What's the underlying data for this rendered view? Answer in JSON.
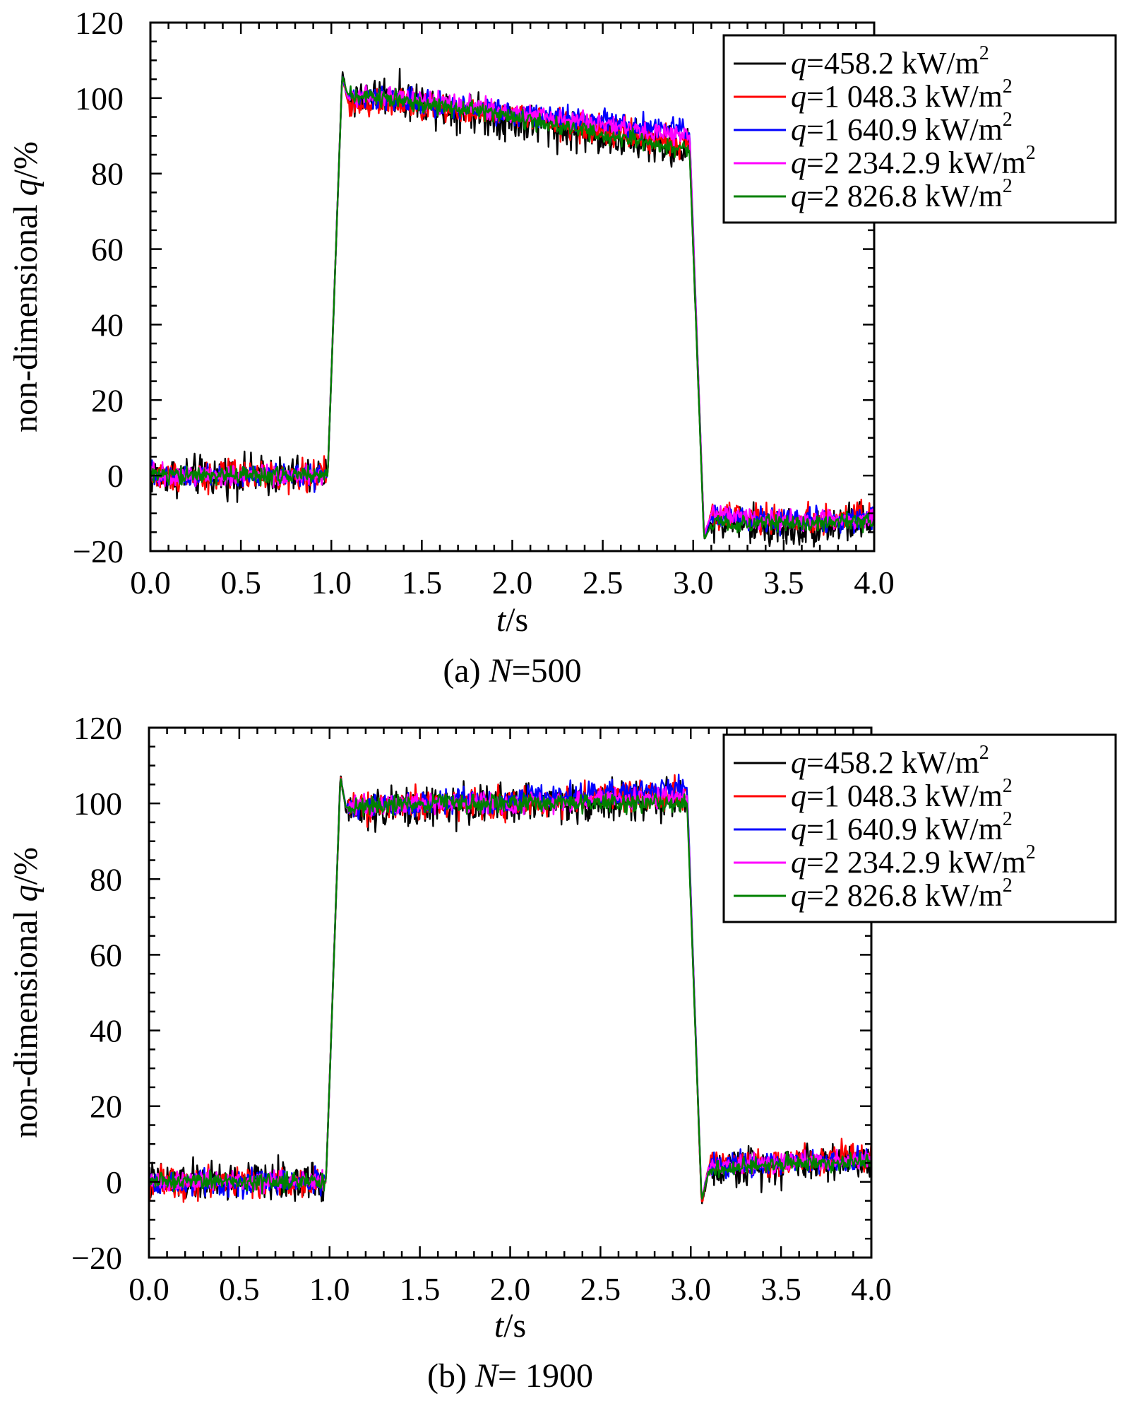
{
  "chart_data": [
    {
      "type": "line",
      "caption": "(a)  N=500",
      "caption_parts": [
        "(a)  ",
        "N",
        "=500"
      ],
      "xlabel": "t/s",
      "xlabel_parts": [
        "t",
        "/s"
      ],
      "ylabel": "non-dimensional q/%",
      "ylabel_parts": [
        "non-dimensional ",
        "q",
        "/%"
      ],
      "xlim": [
        0.0,
        4.0
      ],
      "ylim": [
        -20,
        120
      ],
      "xticks": [
        "0.0",
        "0.5",
        "1.0",
        "1.5",
        "2.0",
        "2.5",
        "3.0",
        "3.5",
        "4.0"
      ],
      "yticks": [
        "120",
        "100",
        "80",
        "60",
        "40",
        "20",
        "0",
        "−20"
      ],
      "legend_position": "top-right",
      "grid": false,
      "series": [
        {
          "name": "q=458.2 kW/m2",
          "parts": [
            "q",
            "=458.2 kW/m",
            "2"
          ],
          "color": "#000000",
          "x": [
            0.0,
            0.98,
            1.06,
            1.09,
            1.3,
            2.0,
            2.98,
            3.06,
            3.1,
            3.5,
            4.0
          ],
          "y": [
            0,
            0,
            107,
            100,
            101,
            94,
            86,
            -17,
            -12,
            -14,
            -12
          ],
          "noise": 4.0
        },
        {
          "name": "q=1 048.3 kW/m2",
          "parts": [
            "q",
            "=1 048.3 kW/m",
            "2"
          ],
          "color": "#ff0000",
          "x": [
            0.0,
            0.98,
            1.06,
            1.09,
            1.3,
            2.0,
            2.98,
            3.06,
            3.1,
            3.5,
            4.0
          ],
          "y": [
            0,
            0,
            106,
            99,
            99,
            95,
            88,
            -16,
            -10,
            -12,
            -11
          ],
          "noise": 3.0
        },
        {
          "name": "q=1 640.9 kW/m2",
          "parts": [
            "q",
            "=1 640.9 kW/m",
            "2"
          ],
          "color": "#0000ff",
          "x": [
            0.0,
            0.98,
            1.06,
            1.09,
            1.3,
            2.0,
            2.98,
            3.06,
            3.1,
            3.5,
            4.0
          ],
          "y": [
            0,
            0,
            106,
            100,
            100,
            96,
            91,
            -16,
            -11,
            -12,
            -11
          ],
          "noise": 2.5
        },
        {
          "name": "q=2 234.2.9 kW/m2",
          "parts": [
            "q",
            "=2 234.2.9 kW/m",
            "2"
          ],
          "color": "#ff00ff",
          "x": [
            0.0,
            0.98,
            1.06,
            1.09,
            1.3,
            2.0,
            2.98,
            3.06,
            3.1,
            3.5,
            4.0
          ],
          "y": [
            0,
            0,
            106,
            100,
            101,
            96,
            90,
            -16,
            -10,
            -12,
            -12
          ],
          "noise": 2.0
        },
        {
          "name": "q=2 826.8 kW/m2",
          "parts": [
            "q",
            "=2 826.8 kW/m",
            "2"
          ],
          "color": "#008000",
          "x": [
            0.0,
            0.98,
            1.06,
            1.09,
            1.3,
            2.0,
            2.98,
            3.06,
            3.1,
            3.5,
            4.0
          ],
          "y": [
            0,
            0,
            106,
            101,
            100,
            95,
            86,
            -17,
            -13,
            -13,
            -12
          ],
          "noise": 1.8
        }
      ]
    },
    {
      "type": "line",
      "caption": "(b) N= 1900",
      "caption_parts": [
        "(b) ",
        "N",
        "= 1900"
      ],
      "xlabel": "t/s",
      "xlabel_parts": [
        "t",
        "/s"
      ],
      "ylabel": "non-dimensional q/%",
      "ylabel_parts": [
        "non-dimensional ",
        "q",
        "/%"
      ],
      "xlim": [
        0.0,
        4.0
      ],
      "ylim": [
        -20,
        120
      ],
      "xticks": [
        "0.0",
        "0.5",
        "1.0",
        "1.5",
        "2.0",
        "2.5",
        "3.0",
        "3.5",
        "4.0"
      ],
      "yticks": [
        "120",
        "100",
        "80",
        "60",
        "40",
        "20",
        "0",
        "−20"
      ],
      "legend_position": "top-right",
      "grid": false,
      "series": [
        {
          "name": "q=458.2 kW/m2",
          "parts": [
            "q",
            "=458.2 kW/m",
            "2"
          ],
          "color": "#000000",
          "x": [
            0.0,
            0.98,
            1.06,
            1.09,
            1.5,
            2.0,
            2.98,
            3.06,
            3.1,
            3.5,
            4.0
          ],
          "y": [
            0,
            0,
            108,
            98,
            99,
            100,
            101,
            -6,
            3,
            5,
            6
          ],
          "noise": 4.0
        },
        {
          "name": "q=1 048.3 kW/m2",
          "parts": [
            "q",
            "=1 048.3 kW/m",
            "2"
          ],
          "color": "#ff0000",
          "x": [
            0.0,
            0.98,
            1.06,
            1.09,
            1.5,
            2.0,
            2.98,
            3.06,
            3.1,
            3.5,
            4.0
          ],
          "y": [
            0,
            0,
            107,
            99,
            100,
            100,
            103,
            -6,
            4,
            5,
            7
          ],
          "noise": 3.0
        },
        {
          "name": "q=1 640.9 kW/m2",
          "parts": [
            "q",
            "=1 640.9 kW/m",
            "2"
          ],
          "color": "#0000ff",
          "x": [
            0.0,
            0.98,
            1.06,
            1.09,
            1.5,
            2.0,
            2.98,
            3.06,
            3.1,
            3.5,
            4.0
          ],
          "y": [
            0,
            0,
            107,
            99,
            100,
            101,
            104,
            -5,
            4,
            5,
            6
          ],
          "noise": 2.5
        },
        {
          "name": "q=2 234.2.9 kW/m2",
          "parts": [
            "q",
            "=2 234.2.9 kW/m",
            "2"
          ],
          "color": "#ff00ff",
          "x": [
            0.0,
            0.98,
            1.06,
            1.09,
            1.5,
            2.0,
            2.98,
            3.06,
            3.1,
            3.5,
            4.0
          ],
          "y": [
            0,
            0,
            107,
            99,
            100,
            100,
            102,
            -5,
            4,
            5,
            6
          ],
          "noise": 2.0
        },
        {
          "name": "q=2 826.8 kW/m2",
          "parts": [
            "q",
            "=2 826.8 kW/m",
            "2"
          ],
          "color": "#008000",
          "x": [
            0.0,
            0.98,
            1.06,
            1.09,
            1.5,
            2.0,
            2.98,
            3.06,
            3.1,
            3.5,
            4.0
          ],
          "y": [
            0,
            0,
            107,
            99,
            100,
            100,
            100,
            -5,
            3,
            5,
            5
          ],
          "noise": 1.8
        }
      ]
    }
  ]
}
